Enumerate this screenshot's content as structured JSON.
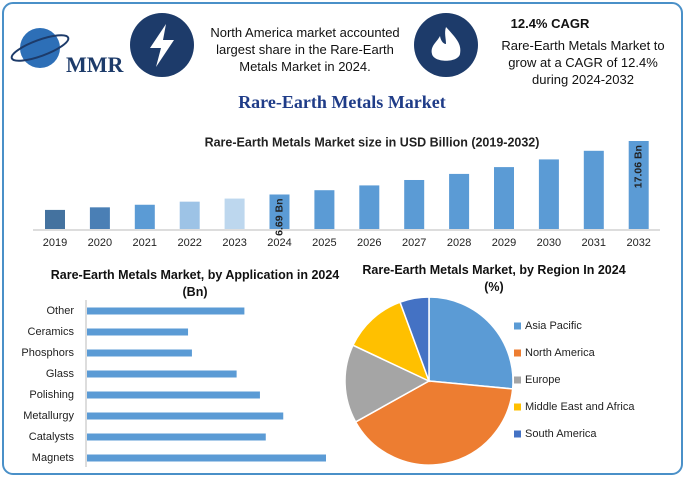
{
  "header": {
    "logo": "MMR",
    "fact_1": "North America market accounted largest share in the Rare-Earth Metals Market in 2024.",
    "fact_2_title": "12.4% CAGR",
    "fact_2": "Rare-Earth Metals Market to grow at a CAGR of 12.4% during 2024-2032",
    "title": "Rare-Earth Metals Market"
  },
  "chart_data": [
    {
      "type": "bar",
      "title": "Rare-Earth Metals Market size in USD Billion (2019-2032)",
      "categories": [
        "2019",
        "2020",
        "2021",
        "2022",
        "2023",
        "2024",
        "2025",
        "2026",
        "2027",
        "2028",
        "2029",
        "2030",
        "2031",
        "2032"
      ],
      "values": [
        3.7,
        4.2,
        4.7,
        5.3,
        5.9,
        6.69,
        7.52,
        8.45,
        9.5,
        10.68,
        12.0,
        13.49,
        15.16,
        17.06
      ],
      "value_labels": [
        null,
        null,
        null,
        null,
        null,
        "6.69 Bn",
        null,
        null,
        null,
        null,
        null,
        null,
        null,
        "17.06 Bn"
      ],
      "colors": [
        "#44729f",
        "#4a7fb5",
        "#5b9bd5",
        "#9dc3e6",
        "#bdd7ee",
        "#5b9bd5",
        "#5b9bd5",
        "#5b9bd5",
        "#5b9bd5",
        "#5b9bd5",
        "#5b9bd5",
        "#5b9bd5",
        "#5b9bd5",
        "#5b9bd5"
      ]
    },
    {
      "type": "barh",
      "title": "Rare-Earth Metals Market, by Application in 2024 (Bn)",
      "categories": [
        "Other",
        "Ceramics",
        "Phosphors",
        "Glass",
        "Polishing",
        "Metallurgy",
        "Catalysts",
        "Magnets"
      ],
      "values": [
        0.81,
        0.52,
        0.54,
        0.77,
        0.89,
        1.01,
        0.92,
        1.23
      ],
      "color": "#5b9bd5"
    },
    {
      "type": "pie",
      "title": "Rare-Earth Metals Market, by Region In 2024 (%)",
      "categories": [
        "Asia Pacific",
        "North America",
        "Europe",
        "Middle East and Africa",
        "South America"
      ],
      "values": [
        26.5,
        40.4,
        15.1,
        12.4,
        5.6
      ],
      "colors": [
        "#5b9bd5",
        "#ed7d31",
        "#a5a5a5",
        "#ffc000",
        "#4472c4"
      ]
    }
  ]
}
